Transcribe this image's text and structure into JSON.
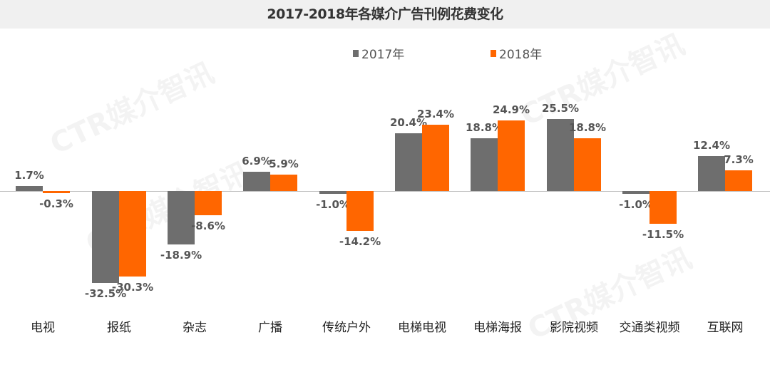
{
  "title": "2017-2018年各媒介广告刊例花费变化",
  "legend": [
    {
      "label": "2017年",
      "color": "#6e6e6e"
    },
    {
      "label": "2018年",
      "color": "#ff6600"
    }
  ],
  "watermark": "CTR媒介智讯",
  "chart_data": {
    "type": "bar",
    "title": "2017-2018年各媒介广告刊例花费变化",
    "xlabel": "",
    "ylabel": "",
    "categories": [
      "电视",
      "报纸",
      "杂志",
      "广播",
      "传统户外",
      "电梯电视",
      "电梯海报",
      "影院视频",
      "交通类视频",
      "互联网"
    ],
    "series": [
      {
        "name": "2017年",
        "color": "#6e6e6e",
        "values": [
          1.7,
          -32.5,
          -18.9,
          6.9,
          -1.0,
          20.4,
          18.8,
          25.5,
          -1.0,
          12.4
        ]
      },
      {
        "name": "2018年",
        "color": "#ff6600",
        "values": [
          -0.3,
          -30.3,
          -8.6,
          5.9,
          -14.2,
          23.4,
          24.9,
          18.8,
          -11.5,
          7.3
        ]
      }
    ],
    "labels": {
      "2017年": [
        "1.7%",
        "-32.5%",
        "-18.9%",
        "6.9%",
        "-1.0%",
        "20.4%",
        "18.8%",
        "25.5%",
        "-1.0%",
        "12.4%"
      ],
      "2018年": [
        "-0.3%",
        "-30.3%",
        "-8.6%",
        "5.9%",
        "-14.2%",
        "23.4%",
        "24.9%",
        "18.8%",
        "-11.5%",
        "7.3%"
      ]
    },
    "unit": "%",
    "grid": false,
    "legend_position": "top"
  }
}
